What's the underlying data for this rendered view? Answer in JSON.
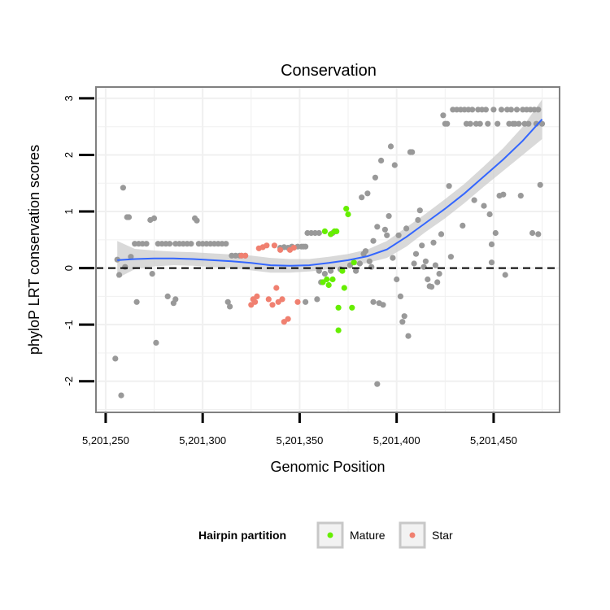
{
  "chart_data": {
    "type": "scatter",
    "title": "Conservation",
    "xlabel": "Genomic Position",
    "ylabel": "phyloP LRT conservation scores",
    "xlim": [
      5201245,
      5201484
    ],
    "ylim": [
      -2.55,
      3.2
    ],
    "xticks": [
      5201250,
      5201300,
      5201350,
      5201400,
      5201450
    ],
    "xtick_labels": [
      "5,201,250",
      "5,201,300",
      "5,201,350",
      "5,201,400",
      "5,201,450"
    ],
    "yticks": [
      -2,
      -1,
      0,
      1,
      2,
      3
    ],
    "ytick_labels": [
      "-2",
      "-1",
      "0",
      "1",
      "2",
      "3"
    ],
    "reference_line": {
      "y": 0,
      "style": "dashed"
    },
    "legend": {
      "title": "Hairpin partition",
      "entries": [
        {
          "label": "Mature",
          "color": "#66EE00"
        },
        {
          "label": "Star",
          "color": "#F08070"
        }
      ]
    },
    "colors": {
      "other": "#999999",
      "Mature": "#66EE00",
      "Star": "#F08070",
      "smooth": "#3366FF",
      "band": "#CCCCCC"
    },
    "series": [
      {
        "name": "other",
        "points": [
          [
            5201255,
            -1.6
          ],
          [
            5201256,
            0.15
          ],
          [
            5201257,
            -0.12
          ],
          [
            5201258,
            -2.25
          ],
          [
            5201259,
            1.42
          ],
          [
            5201260,
            0.02
          ],
          [
            5201261,
            0.9
          ],
          [
            5201262,
            0.9
          ],
          [
            5201263,
            0.2
          ],
          [
            5201266,
            -0.6
          ],
          [
            5201265,
            0.43
          ],
          [
            5201267,
            0.43
          ],
          [
            5201269,
            0.43
          ],
          [
            5201271,
            0.43
          ],
          [
            5201273,
            0.85
          ],
          [
            5201274,
            -0.1
          ],
          [
            5201275,
            0.88
          ],
          [
            5201276,
            -1.32
          ],
          [
            5201277,
            0.43
          ],
          [
            5201279,
            0.43
          ],
          [
            5201281,
            0.43
          ],
          [
            5201282,
            -0.5
          ],
          [
            5201283,
            0.43
          ],
          [
            5201285,
            -0.62
          ],
          [
            5201286,
            -0.55
          ],
          [
            5201286,
            0.43
          ],
          [
            5201288,
            0.43
          ],
          [
            5201290,
            0.43
          ],
          [
            5201292,
            0.43
          ],
          [
            5201294,
            0.43
          ],
          [
            5201296,
            0.88
          ],
          [
            5201297,
            0.84
          ],
          [
            5201298,
            0.43
          ],
          [
            5201300,
            0.43
          ],
          [
            5201302,
            0.43
          ],
          [
            5201304,
            0.43
          ],
          [
            5201306,
            0.43
          ],
          [
            5201308,
            0.43
          ],
          [
            5201310,
            0.43
          ],
          [
            5201312,
            0.43
          ],
          [
            5201313,
            -0.6
          ],
          [
            5201314,
            -0.68
          ],
          [
            5201315,
            0.22
          ],
          [
            5201317,
            0.22
          ],
          [
            5201319,
            0.22
          ],
          [
            5201320,
            0.22
          ],
          [
            5201322,
            0.22
          ],
          [
            5201340,
            0.36
          ],
          [
            5201342,
            0.37
          ],
          [
            5201344,
            0.36
          ],
          [
            5201346,
            0.38
          ],
          [
            5201349,
            0.38
          ],
          [
            5201351,
            0.38
          ],
          [
            5201352,
            0.38
          ],
          [
            5201353,
            0.38
          ],
          [
            5201354,
            0.62
          ],
          [
            5201356,
            0.62
          ],
          [
            5201358,
            0.62
          ],
          [
            5201360,
            0.62
          ],
          [
            5201353,
            -0.6
          ],
          [
            5201359,
            -0.55
          ],
          [
            5201360,
            -0.05
          ],
          [
            5201361,
            -0.25
          ],
          [
            5201363,
            -0.1
          ],
          [
            5201366,
            -0.05
          ],
          [
            5201367,
            0.62
          ],
          [
            5201371,
            -0.02
          ],
          [
            5201376,
            0.05
          ],
          [
            5201379,
            -0.05
          ],
          [
            5201381,
            0.08
          ],
          [
            5201382,
            1.25
          ],
          [
            5201383,
            0.25
          ],
          [
            5201384,
            0.3
          ],
          [
            5201385,
            1.32
          ],
          [
            5201386,
            0.12
          ],
          [
            5201387,
            0.02
          ],
          [
            5201388,
            0.48
          ],
          [
            5201388,
            -0.6
          ],
          [
            5201389,
            1.6
          ],
          [
            5201390,
            0.73
          ],
          [
            5201390,
            -2.05
          ],
          [
            5201391,
            -0.62
          ],
          [
            5201392,
            1.9
          ],
          [
            5201393,
            -0.65
          ],
          [
            5201394,
            0.68
          ],
          [
            5201395,
            0.58
          ],
          [
            5201396,
            0.92
          ],
          [
            5201397,
            2.15
          ],
          [
            5201398,
            0.18
          ],
          [
            5201399,
            1.82
          ],
          [
            5201400,
            -0.2
          ],
          [
            5201401,
            0.58
          ],
          [
            5201402,
            -0.5
          ],
          [
            5201403,
            -0.95
          ],
          [
            5201404,
            -0.85
          ],
          [
            5201405,
            0.7
          ],
          [
            5201406,
            -1.2
          ],
          [
            5201407,
            2.05
          ],
          [
            5201408,
            2.05
          ],
          [
            5201409,
            0.08
          ],
          [
            5201410,
            0.25
          ],
          [
            5201411,
            0.85
          ],
          [
            5201412,
            1.02
          ],
          [
            5201413,
            0.4
          ],
          [
            5201414,
            0.02
          ],
          [
            5201415,
            0.12
          ],
          [
            5201416,
            -0.2
          ],
          [
            5201417,
            -0.32
          ],
          [
            5201418,
            -0.33
          ],
          [
            5201419,
            0.45
          ],
          [
            5201420,
            0.05
          ],
          [
            5201421,
            -0.25
          ],
          [
            5201422,
            -0.1
          ],
          [
            5201423,
            0.6
          ],
          [
            5201424,
            2.7
          ],
          [
            5201425,
            2.55
          ],
          [
            5201426,
            2.55
          ],
          [
            5201427,
            1.45
          ],
          [
            5201428,
            0.2
          ],
          [
            5201429,
            2.8
          ],
          [
            5201431,
            2.8
          ],
          [
            5201433,
            2.8
          ],
          [
            5201434,
            0.75
          ],
          [
            5201435,
            2.8
          ],
          [
            5201436,
            2.55
          ],
          [
            5201437,
            2.8
          ],
          [
            5201438,
            2.55
          ],
          [
            5201439,
            2.8
          ],
          [
            5201440,
            1.2
          ],
          [
            5201441,
            2.55
          ],
          [
            5201442,
            2.8
          ],
          [
            5201443,
            2.55
          ],
          [
            5201444,
            2.8
          ],
          [
            5201445,
            1.1
          ],
          [
            5201446,
            2.8
          ],
          [
            5201447,
            2.55
          ],
          [
            5201448,
            0.95
          ],
          [
            5201449,
            0.1
          ],
          [
            5201449,
            0.42
          ],
          [
            5201450,
            2.8
          ],
          [
            5201451,
            0.62
          ],
          [
            5201452,
            2.55
          ],
          [
            5201453,
            1.28
          ],
          [
            5201454,
            2.8
          ],
          [
            5201455,
            1.3
          ],
          [
            5201456,
            -0.12
          ],
          [
            5201457,
            2.8
          ],
          [
            5201458,
            2.55
          ],
          [
            5201459,
            2.8
          ],
          [
            5201460,
            2.55
          ],
          [
            5201461,
            2.55
          ],
          [
            5201462,
            2.8
          ],
          [
            5201463,
            2.55
          ],
          [
            5201464,
            1.28
          ],
          [
            5201465,
            2.8
          ],
          [
            5201466,
            2.55
          ],
          [
            5201467,
            2.8
          ],
          [
            5201468,
            2.55
          ],
          [
            5201469,
            2.8
          ],
          [
            5201470,
            0.62
          ],
          [
            5201471,
            2.8
          ],
          [
            5201472,
            2.55
          ],
          [
            5201473,
            0.6
          ],
          [
            5201473,
            2.8
          ],
          [
            5201474,
            1.47
          ],
          [
            5201475,
            2.55
          ]
        ]
      },
      {
        "name": "Mature",
        "points": [
          [
            5201362,
            -0.25
          ],
          [
            5201363,
            0.65
          ],
          [
            5201364,
            -0.2
          ],
          [
            5201365,
            -0.3
          ],
          [
            5201366,
            0.6
          ],
          [
            5201367,
            -0.2
          ],
          [
            5201368,
            0.65
          ],
          [
            5201369,
            0.65
          ],
          [
            5201370,
            -0.7
          ],
          [
            5201370,
            -1.1
          ],
          [
            5201372,
            -0.05
          ],
          [
            5201373,
            -0.35
          ],
          [
            5201374,
            1.05
          ],
          [
            5201375,
            0.95
          ],
          [
            5201377,
            -0.7
          ],
          [
            5201378,
            0.1
          ]
        ]
      },
      {
        "name": "Star",
        "points": [
          [
            5201320,
            0.22
          ],
          [
            5201322,
            0.22
          ],
          [
            5201325,
            -0.65
          ],
          [
            5201326,
            -0.55
          ],
          [
            5201327,
            -0.6
          ],
          [
            5201328,
            -0.5
          ],
          [
            5201329,
            0.35
          ],
          [
            5201331,
            0.37
          ],
          [
            5201333,
            0.4
          ],
          [
            5201334,
            -0.55
          ],
          [
            5201336,
            -0.65
          ],
          [
            5201337,
            0.4
          ],
          [
            5201338,
            -0.35
          ],
          [
            5201339,
            -0.6
          ],
          [
            5201340,
            0.32
          ],
          [
            5201341,
            -0.55
          ],
          [
            5201342,
            -0.95
          ],
          [
            5201344,
            -0.9
          ],
          [
            5201345,
            0.32
          ],
          [
            5201347,
            0.36
          ],
          [
            5201349,
            -0.6
          ]
        ]
      }
    ],
    "smooth_line": [
      [
        5201256,
        0.14
      ],
      [
        5201265,
        0.16
      ],
      [
        5201275,
        0.17
      ],
      [
        5201285,
        0.17
      ],
      [
        5201295,
        0.16
      ],
      [
        5201305,
        0.14
      ],
      [
        5201315,
        0.12
      ],
      [
        5201325,
        0.09
      ],
      [
        5201335,
        0.05
      ],
      [
        5201345,
        0.04
      ],
      [
        5201355,
        0.05
      ],
      [
        5201365,
        0.09
      ],
      [
        5201375,
        0.14
      ],
      [
        5201385,
        0.21
      ],
      [
        5201395,
        0.33
      ],
      [
        5201405,
        0.55
      ],
      [
        5201415,
        0.8
      ],
      [
        5201425,
        1.05
      ],
      [
        5201435,
        1.32
      ],
      [
        5201445,
        1.62
      ],
      [
        5201455,
        1.92
      ],
      [
        5201465,
        2.25
      ],
      [
        5201475,
        2.63
      ]
    ],
    "confidence_band": [
      [
        5201256,
        -0.18,
        0.48
      ],
      [
        5201265,
        -0.02,
        0.34
      ],
      [
        5201275,
        0.03,
        0.31
      ],
      [
        5201285,
        0.05,
        0.29
      ],
      [
        5201295,
        0.04,
        0.28
      ],
      [
        5201305,
        0.02,
        0.26
      ],
      [
        5201315,
        0.0,
        0.24
      ],
      [
        5201325,
        -0.04,
        0.22
      ],
      [
        5201335,
        -0.08,
        0.18
      ],
      [
        5201345,
        -0.08,
        0.16
      ],
      [
        5201355,
        -0.06,
        0.16
      ],
      [
        5201365,
        -0.02,
        0.2
      ],
      [
        5201375,
        0.03,
        0.25
      ],
      [
        5201385,
        0.09,
        0.33
      ],
      [
        5201395,
        0.18,
        0.48
      ],
      [
        5201405,
        0.38,
        0.72
      ],
      [
        5201415,
        0.64,
        0.96
      ],
      [
        5201425,
        0.88,
        1.22
      ],
      [
        5201435,
        1.15,
        1.49
      ],
      [
        5201445,
        1.44,
        1.8
      ],
      [
        5201455,
        1.72,
        2.12
      ],
      [
        5201465,
        2.0,
        2.5
      ],
      [
        5201475,
        2.28,
        2.98
      ]
    ]
  }
}
